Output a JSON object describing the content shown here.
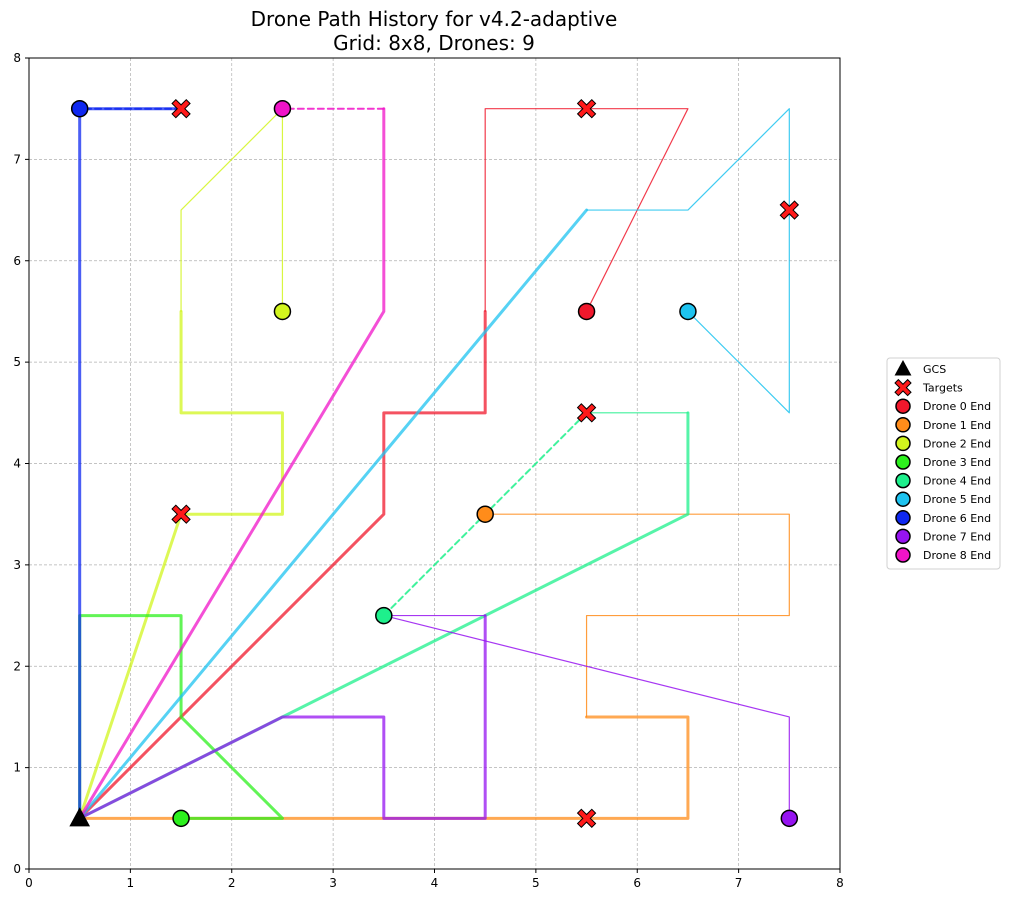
{
  "chart_data": {
    "type": "line",
    "title": "Drone Path History for v4.2-adaptive",
    "subtitle": "Grid: 8x8, Drones: 9",
    "xlabel": "",
    "ylabel": "",
    "xlim": [
      0,
      8
    ],
    "ylim": [
      0,
      8
    ],
    "xticks": [
      "0",
      "1",
      "2",
      "3",
      "4",
      "5",
      "6",
      "7",
      "8"
    ],
    "yticks": [
      "0",
      "1",
      "2",
      "3",
      "4",
      "5",
      "6",
      "7",
      "8"
    ],
    "grid": true,
    "legend_position": "right",
    "gcs": {
      "label": "GCS",
      "x": 0.5,
      "y": 0.5,
      "color": "#000000"
    },
    "targets": {
      "label": "Targets",
      "color": "#ff1a1a",
      "points": [
        [
          1.5,
          7.5
        ],
        [
          5.5,
          7.5
        ],
        [
          7.5,
          6.5
        ],
        [
          5.5,
          4.5
        ],
        [
          1.5,
          3.5
        ],
        [
          5.5,
          0.5
        ]
      ]
    },
    "drones": [
      {
        "name": "Drone 0 End",
        "color": "#f0182c",
        "end": [
          5.5,
          5.5
        ],
        "segments": [
          {
            "style": "thick",
            "points": [
              [
                0.5,
                0.5
              ],
              [
                3.5,
                3.5
              ],
              [
                3.5,
                4.5
              ],
              [
                4.5,
                4.5
              ],
              [
                4.5,
                5.5
              ]
            ]
          },
          {
            "style": "thin",
            "points": [
              [
                4.5,
                5.5
              ],
              [
                4.5,
                7.5
              ],
              [
                6.5,
                7.5
              ],
              [
                5.5,
                5.5
              ]
            ]
          }
        ]
      },
      {
        "name": "Drone 1 End",
        "color": "#ff8c1a",
        "end": [
          4.5,
          3.5
        ],
        "segments": [
          {
            "style": "thick",
            "points": [
              [
                0.5,
                0.5
              ],
              [
                6.5,
                0.5
              ],
              [
                6.5,
                1.5
              ],
              [
                5.5,
                1.5
              ]
            ]
          },
          {
            "style": "thin",
            "points": [
              [
                5.5,
                1.5
              ],
              [
                5.5,
                2.5
              ],
              [
                7.5,
                2.5
              ],
              [
                7.5,
                3.5
              ],
              [
                4.5,
                3.5
              ]
            ]
          }
        ]
      },
      {
        "name": "Drone 2 End",
        "color": "#d2f51e",
        "end": [
          2.5,
          5.5
        ],
        "segments": [
          {
            "style": "thick",
            "points": [
              [
                0.5,
                0.5
              ],
              [
                1.5,
                3.5
              ],
              [
                2.5,
                3.5
              ],
              [
                2.5,
                4.5
              ],
              [
                1.5,
                4.5
              ],
              [
                1.5,
                5.5
              ]
            ]
          },
          {
            "style": "thin",
            "points": [
              [
                1.5,
                5.5
              ],
              [
                1.5,
                6.5
              ],
              [
                2.5,
                7.5
              ],
              [
                2.5,
                5.5
              ]
            ]
          }
        ]
      },
      {
        "name": "Drone 3 End",
        "color": "#2df01e",
        "end": [
          1.5,
          0.5
        ],
        "segments": [
          {
            "style": "thick",
            "points": [
              [
                0.5,
                0.5
              ],
              [
                0.5,
                2.5
              ],
              [
                1.5,
                2.5
              ],
              [
                1.5,
                1.5
              ],
              [
                2.5,
                0.5
              ],
              [
                1.5,
                0.5
              ]
            ]
          }
        ]
      },
      {
        "name": "Drone 4 End",
        "color": "#1ef08c",
        "end": [
          3.5,
          2.5
        ],
        "segments": [
          {
            "style": "thick",
            "points": [
              [
                0.5,
                0.5
              ],
              [
                6.5,
                3.5
              ],
              [
                6.5,
                4.5
              ]
            ]
          },
          {
            "style": "thin",
            "points": [
              [
                6.5,
                4.5
              ],
              [
                5.5,
                4.5
              ]
            ]
          },
          {
            "style": "dashed",
            "points": [
              [
                5.5,
                4.5
              ],
              [
                3.5,
                2.5
              ]
            ]
          }
        ]
      },
      {
        "name": "Drone 5 End",
        "color": "#1ec3f0",
        "end": [
          6.5,
          5.5
        ],
        "segments": [
          {
            "style": "thick",
            "points": [
              [
                0.5,
                0.5
              ],
              [
                5.5,
                6.5
              ]
            ]
          },
          {
            "style": "thin",
            "points": [
              [
                5.5,
                6.5
              ],
              [
                6.5,
                6.5
              ],
              [
                7.5,
                7.5
              ],
              [
                7.5,
                4.5
              ],
              [
                6.5,
                5.5
              ]
            ]
          }
        ]
      },
      {
        "name": "Drone 6 End",
        "color": "#0f28f0",
        "end": [
          0.5,
          7.5
        ],
        "segments": [
          {
            "style": "thick",
            "points": [
              [
                0.5,
                0.5
              ],
              [
                0.5,
                7.5
              ],
              [
                1.5,
                7.5
              ]
            ]
          },
          {
            "style": "dashed",
            "points": [
              [
                1.5,
                7.5
              ],
              [
                0.5,
                7.5
              ]
            ]
          }
        ]
      },
      {
        "name": "Drone 7 End",
        "color": "#9614f0",
        "end": [
          7.5,
          0.5
        ],
        "segments": [
          {
            "style": "thick",
            "points": [
              [
                0.5,
                0.5
              ],
              [
                2.5,
                1.5
              ],
              [
                3.5,
                1.5
              ],
              [
                3.5,
                0.5
              ],
              [
                4.5,
                0.5
              ],
              [
                4.5,
                2.5
              ]
            ]
          },
          {
            "style": "thin",
            "points": [
              [
                4.5,
                2.5
              ],
              [
                3.5,
                2.5
              ],
              [
                7.5,
                1.5
              ],
              [
                7.5,
                0.5
              ]
            ]
          }
        ]
      },
      {
        "name": "Drone 8 End",
        "color": "#f014c8",
        "end": [
          2.5,
          7.5
        ],
        "segments": [
          {
            "style": "thick",
            "points": [
              [
                0.5,
                0.5
              ],
              [
                3.5,
                5.5
              ],
              [
                3.5,
                7.5
              ]
            ]
          },
          {
            "style": "dashed",
            "points": [
              [
                3.5,
                7.5
              ],
              [
                2.5,
                7.5
              ]
            ]
          }
        ]
      }
    ]
  }
}
